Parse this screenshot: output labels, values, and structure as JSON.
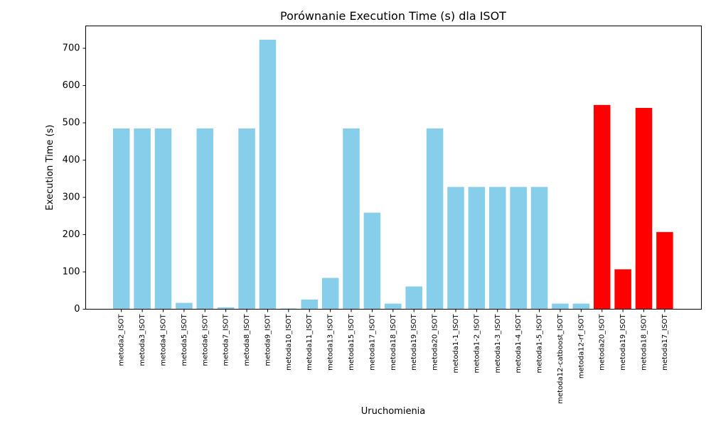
{
  "chart_data": {
    "type": "bar",
    "title": "Porównanie Execution Time (s) dla ISOT",
    "xlabel": "Uruchomienia",
    "ylabel": "Execution Time (s)",
    "ylim": [
      0,
      760
    ],
    "yticks": [
      0,
      100,
      200,
      300,
      400,
      500,
      600,
      700
    ],
    "categories": [
      "metoda2_ISOT",
      "metoda3_ISOT",
      "metoda4_ISOT",
      "metoda5_ISOT",
      "metoda6_ISOT",
      "metoda7_ISOT",
      "metoda8_ISOT",
      "metoda9_ISOT",
      "metoda10_ISOT",
      "metoda11_ISOT",
      "metoda13_ISOT",
      "metoda15_ISOT",
      "metoda17_ISOT",
      "metoda18_ISOT",
      "metoda19_ISOT",
      "metoda20_ISOT",
      "metoda1-1_ISOT",
      "metoda1-2_ISOT",
      "metoda1-3_ISOT",
      "metoda1-4_ISOT",
      "metoda1-5_ISOT",
      "metoda12-catboost_ISOT",
      "metoda12-rf_ISOT",
      "metoda20_ISOT",
      "metoda19_ISOT",
      "metoda18_ISOT",
      "metoda17_ISOT"
    ],
    "values": [
      485,
      485,
      485,
      17,
      485,
      5,
      485,
      723,
      2,
      26,
      84,
      485,
      259,
      15,
      61,
      485,
      328,
      328,
      328,
      328,
      328,
      15,
      15,
      548,
      107,
      540,
      207
    ],
    "bar_colors": [
      "#87CEEB",
      "#87CEEB",
      "#87CEEB",
      "#87CEEB",
      "#87CEEB",
      "#87CEEB",
      "#87CEEB",
      "#87CEEB",
      "#87CEEB",
      "#87CEEB",
      "#87CEEB",
      "#87CEEB",
      "#87CEEB",
      "#87CEEB",
      "#87CEEB",
      "#87CEEB",
      "#87CEEB",
      "#87CEEB",
      "#87CEEB",
      "#87CEEB",
      "#87CEEB",
      "#87CEEB",
      "#87CEEB",
      "#FF0000",
      "#FF0000",
      "#FF0000",
      "#FF0000"
    ],
    "grid": false,
    "legend": "none"
  }
}
